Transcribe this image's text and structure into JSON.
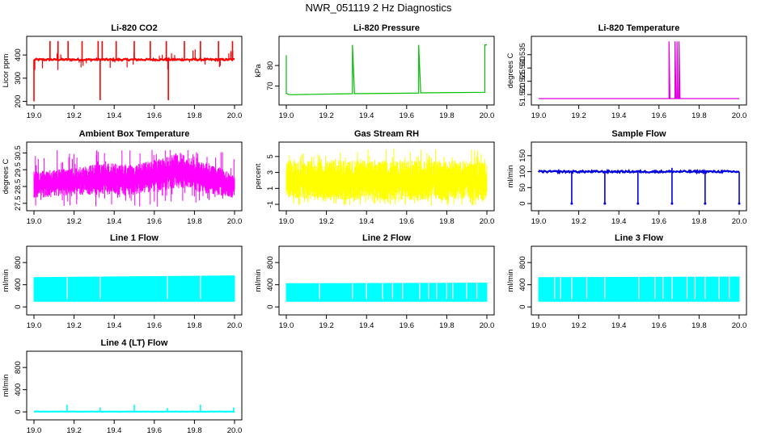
{
  "page": {
    "title": "NWR_051119  2 Hz Diagnostics"
  },
  "colors": {
    "co2": "#ff0000",
    "pressure": "#00c000",
    "temperature": "#e000e0",
    "box_temp": "#ff00ff",
    "rh": "#ffff00",
    "sample_flow": "#0000e0",
    "line_flow": "#00ffff"
  },
  "chart_data": [
    {
      "id": "co2",
      "type": "line",
      "style": "spiky",
      "title": "Li-820 CO2",
      "ylabel": "Licor ppm",
      "xlabel": "",
      "xlim": [
        19.0,
        20.0
      ],
      "ylim": [
        195,
        470
      ],
      "yticks": [
        200,
        300,
        400
      ],
      "xticks": [
        "19.0",
        "19.2",
        "19.4",
        "19.6",
        "19.8",
        "20.0"
      ],
      "series": [
        {
          "name": "CO2",
          "color_key": "co2",
          "base": 380,
          "noise": 4,
          "x": [
            19.0,
            19.08,
            19.12,
            19.17,
            19.24,
            19.32,
            19.33,
            19.34,
            19.41,
            19.5,
            19.58,
            19.66,
            19.67,
            19.75,
            19.83,
            19.92,
            19.99
          ],
          "y": [
            200,
            460,
            460,
            460,
            460,
            460,
            205,
            460,
            460,
            460,
            460,
            460,
            205,
            460,
            460,
            460,
            460
          ]
        }
      ]
    },
    {
      "id": "pressure",
      "type": "line",
      "style": "step",
      "title": "Li-820 Pressure",
      "ylabel": "kPa",
      "xlabel": "",
      "xlim": [
        19.0,
        20.0
      ],
      "ylim": [
        62,
        93
      ],
      "yticks": [
        70,
        80
      ],
      "xticks": [
        "19.0",
        "19.2",
        "19.4",
        "19.6",
        "19.8",
        "20.0"
      ],
      "series": [
        {
          "name": "Pressure",
          "color_key": "pressure",
          "x": [
            19.0,
            19.0,
            19.01,
            19.02,
            19.33,
            19.33,
            19.34,
            19.66,
            19.66,
            19.67,
            19.99,
            19.99,
            20.0
          ],
          "y": [
            85,
            66.5,
            66,
            65.8,
            66.3,
            90,
            66.3,
            66.6,
            90,
            66.7,
            67,
            90,
            90
          ]
        }
      ]
    },
    {
      "id": "temperature",
      "type": "line",
      "style": "step",
      "title": "Li-820 Temperature",
      "ylabel": "degrees C",
      "xlabel": "",
      "xlim": [
        19.0,
        20.0
      ],
      "ylim": [
        51.517,
        51.541
      ],
      "yticks": [
        51.52,
        51.525,
        51.53,
        51.535
      ],
      "ytick_labels": [
        "51.520",
        "51.525",
        "51.530",
        "51.535"
      ],
      "xticks": [
        "19.0",
        "19.2",
        "19.4",
        "19.6",
        "19.8",
        "20.0"
      ],
      "series": [
        {
          "name": "Temperature",
          "color_key": "temperature",
          "x": [
            19.0,
            19.65,
            19.65,
            19.655,
            19.68,
            19.68,
            19.685,
            19.69,
            19.69,
            19.695,
            19.7,
            19.7,
            19.705,
            20.0
          ],
          "y": [
            51.5185,
            51.5185,
            51.54,
            51.5185,
            51.5185,
            51.54,
            51.5185,
            51.5185,
            51.54,
            51.5185,
            51.5185,
            51.54,
            51.5185,
            51.5185
          ]
        }
      ]
    },
    {
      "id": "box_temp",
      "type": "line",
      "style": "band",
      "title": "Ambient Box Temperature",
      "ylabel": "degrees C",
      "xlabel": "",
      "xlim": [
        19.0,
        20.0
      ],
      "ylim": [
        27.2,
        31.0
      ],
      "yticks": [
        27.5,
        28.5,
        29.5,
        30.5
      ],
      "ytick_labels": [
        "27.5",
        "28.5",
        "29.5",
        "30.5"
      ],
      "xticks": [
        "19.0",
        "19.2",
        "19.4",
        "19.6",
        "19.8",
        "20.0"
      ],
      "series": [
        {
          "name": "Box temperature",
          "color_key": "box_temp",
          "x": [
            19.0,
            19.2,
            19.35,
            19.5,
            19.65,
            19.72,
            19.8,
            19.9,
            20.0
          ],
          "low": [
            27.8,
            28.0,
            28.0,
            28.0,
            28.2,
            28.4,
            28.2,
            28.0,
            27.8
          ],
          "high": [
            29.4,
            29.6,
            29.9,
            29.8,
            30.2,
            30.6,
            30.1,
            29.8,
            29.2
          ],
          "spike_low": 27.3,
          "spike_high": 30.7
        }
      ]
    },
    {
      "id": "rh",
      "type": "line",
      "style": "band",
      "title": "Gas Stream RH",
      "ylabel": "percent",
      "xlabel": "",
      "xlim": [
        19.0,
        20.0
      ],
      "ylim": [
        -1.5,
        6.5
      ],
      "yticks": [
        -1,
        1,
        3,
        5
      ],
      "xticks": [
        "19.0",
        "19.2",
        "19.4",
        "19.6",
        "19.8",
        "20.0"
      ],
      "series": [
        {
          "name": "RH",
          "color_key": "rh",
          "x": [
            19.0,
            20.0
          ],
          "low": [
            -0.5,
            -0.5
          ],
          "high": [
            4.5,
            4.5
          ],
          "spike_low": -1.2,
          "spike_high": 6.0
        }
      ]
    },
    {
      "id": "sample_flow",
      "type": "line",
      "style": "flow",
      "title": "Sample Flow",
      "ylabel": "ml/min",
      "xlabel": "",
      "xlim": [
        19.0,
        20.0
      ],
      "ylim": [
        -15,
        185
      ],
      "yticks": [
        0,
        50,
        100,
        150
      ],
      "xticks": [
        "19.0",
        "19.2",
        "19.4",
        "19.6",
        "19.8",
        "20.0"
      ],
      "series": [
        {
          "name": "Sample flow",
          "color_key": "sample_flow",
          "base": 100,
          "noise": 3,
          "gaps": [],
          "dips": [
            19.165,
            19.33,
            19.495,
            19.665,
            19.83,
            20.0
          ],
          "dip_to": 0,
          "spikes": [
            19.665
          ],
          "spike_to": 112
        }
      ]
    },
    {
      "id": "line1",
      "type": "line",
      "style": "flow",
      "title": "Line 1 Flow",
      "ylabel": "ml/min",
      "xlabel": "",
      "xlim": [
        19.0,
        20.0
      ],
      "ylim": [
        -100,
        1050
      ],
      "yticks": [
        0,
        400,
        800
      ],
      "xticks": [
        "19.0",
        "19.2",
        "19.4",
        "19.6",
        "19.8",
        "20.0"
      ],
      "series": [
        {
          "name": "Line 1",
          "color_key": "line_flow",
          "band": [
            100,
            530
          ],
          "top_rise": 30,
          "gaps": [
            19.165,
            19.33,
            19.665,
            19.83
          ],
          "dips": [],
          "spikes": []
        }
      ]
    },
    {
      "id": "line2",
      "type": "line",
      "style": "flow",
      "title": "Line 2 Flow",
      "ylabel": "ml/min",
      "xlabel": "",
      "xlim": [
        19.0,
        20.0
      ],
      "ylim": [
        -100,
        1050
      ],
      "yticks": [
        0,
        400,
        800
      ],
      "xticks": [
        "19.0",
        "19.2",
        "19.4",
        "19.6",
        "19.8",
        "20.0"
      ],
      "series": [
        {
          "name": "Line 2",
          "color_key": "line_flow",
          "band": [
            100,
            420
          ],
          "top_rise": 10,
          "gaps": [
            19.165,
            19.33,
            19.4,
            19.48,
            19.53,
            19.58,
            19.665,
            19.71,
            19.75,
            19.8,
            19.83,
            19.9,
            19.95
          ],
          "dips": [],
          "spikes": []
        }
      ]
    },
    {
      "id": "line3",
      "type": "line",
      "style": "flow",
      "title": "Line 3 Flow",
      "ylabel": "ml/min",
      "xlabel": "",
      "xlim": [
        19.0,
        20.0
      ],
      "ylim": [
        -100,
        1050
      ],
      "yticks": [
        0,
        400,
        800
      ],
      "xticks": [
        "19.0",
        "19.2",
        "19.4",
        "19.6",
        "19.8",
        "20.0"
      ],
      "series": [
        {
          "name": "Line 3",
          "color_key": "line_flow",
          "band": [
            100,
            530
          ],
          "top_rise": 10,
          "gaps": [
            19.08,
            19.11,
            19.165,
            19.24,
            19.33,
            19.5,
            19.58,
            19.62,
            19.665,
            19.74,
            19.78,
            19.83,
            19.9,
            19.95
          ],
          "dips": [],
          "spikes": []
        }
      ]
    },
    {
      "id": "line4",
      "type": "line",
      "style": "flow",
      "title": "Line 4 (LT) Flow",
      "ylabel": "ml/min",
      "xlabel": "",
      "xlim": [
        19.0,
        20.0
      ],
      "ylim": [
        -100,
        1050
      ],
      "yticks": [
        0,
        400,
        800
      ],
      "xticks": [
        "19.0",
        "19.2",
        "19.4",
        "19.6",
        "19.8",
        "20.0"
      ],
      "series": [
        {
          "name": "Line 4",
          "color_key": "line_flow",
          "base": 5,
          "noise": 3,
          "gaps": [],
          "dips": [],
          "spikes": [
            19.165,
            19.33,
            19.5,
            19.665,
            19.83,
            19.995
          ],
          "spike_values": [
            130,
            80,
            130,
            70,
            130,
            80
          ]
        }
      ]
    }
  ]
}
